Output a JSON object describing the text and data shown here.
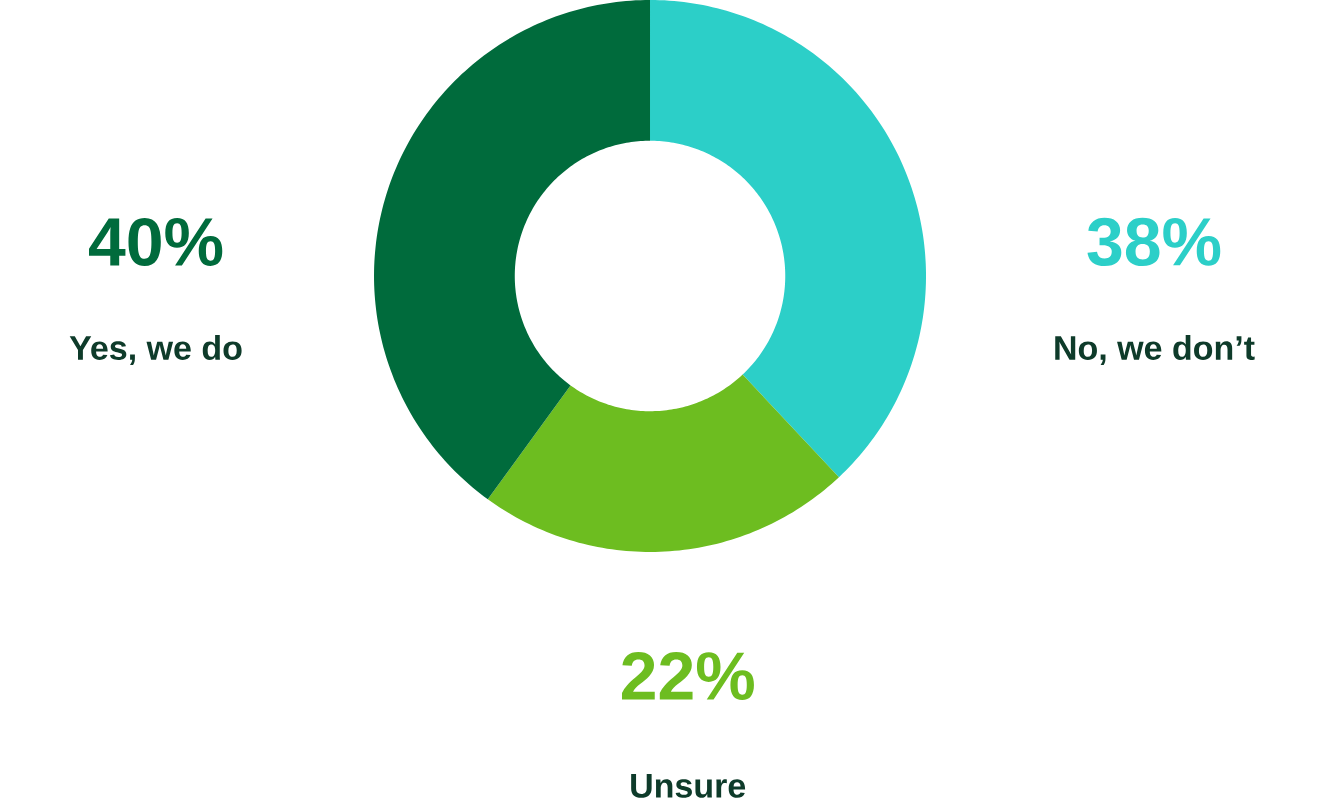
{
  "chart_data": {
    "type": "donut",
    "categories": [
      "No, we don’t",
      "Unsure",
      "Yes, we do"
    ],
    "values": [
      38,
      22,
      40
    ],
    "colors": [
      "#2ccfc8",
      "#6dbd20",
      "#006b3c"
    ],
    "value_labels": [
      "38%",
      "22%",
      "40%"
    ]
  }
}
